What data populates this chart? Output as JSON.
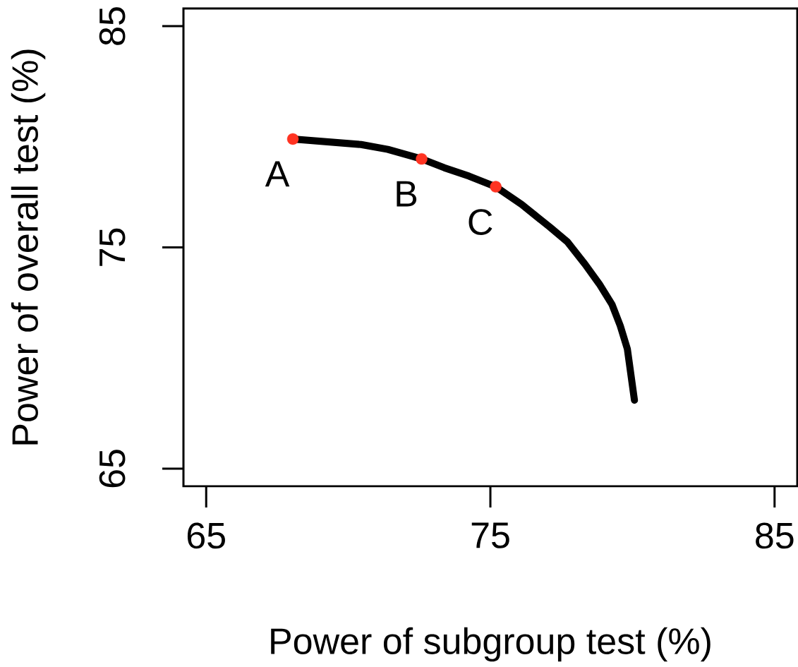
{
  "chart_data": {
    "type": "line",
    "xlabel": "Power of subgroup test (%)",
    "ylabel": "Power of overall test (%)",
    "xlim": [
      64.2,
      85.8
    ],
    "ylim": [
      64.2,
      85.8
    ],
    "xticks": [
      65,
      75,
      85
    ],
    "yticks": [
      65,
      75,
      85
    ],
    "series": [
      {
        "color": "#000000",
        "marker": "none",
        "x": [
          68.05,
          70.45,
          71.39,
          72.58,
          73.38,
          74.25,
          75.19,
          76.1,
          77.09,
          77.71,
          78.33,
          78.83,
          79.28,
          79.57,
          79.82,
          80.07
        ],
        "values": [
          79.9,
          79.65,
          79.43,
          79.0,
          78.6,
          78.22,
          77.74,
          76.94,
          75.92,
          75.25,
          74.24,
          73.35,
          72.42,
          71.46,
          70.41,
          68.09
        ]
      },
      {
        "type": "scatter",
        "color": "#ff3322",
        "marker": "circle",
        "x": [
          68.05,
          72.58,
          75.19
        ],
        "values": [
          79.9,
          79.0,
          77.74
        ]
      }
    ],
    "annotations": [
      {
        "text": "A",
        "x": 68.05,
        "y": 79.9
      },
      {
        "text": "B",
        "x": 72.58,
        "y": 79.0
      },
      {
        "text": "C",
        "x": 75.19,
        "y": 77.74
      }
    ]
  }
}
